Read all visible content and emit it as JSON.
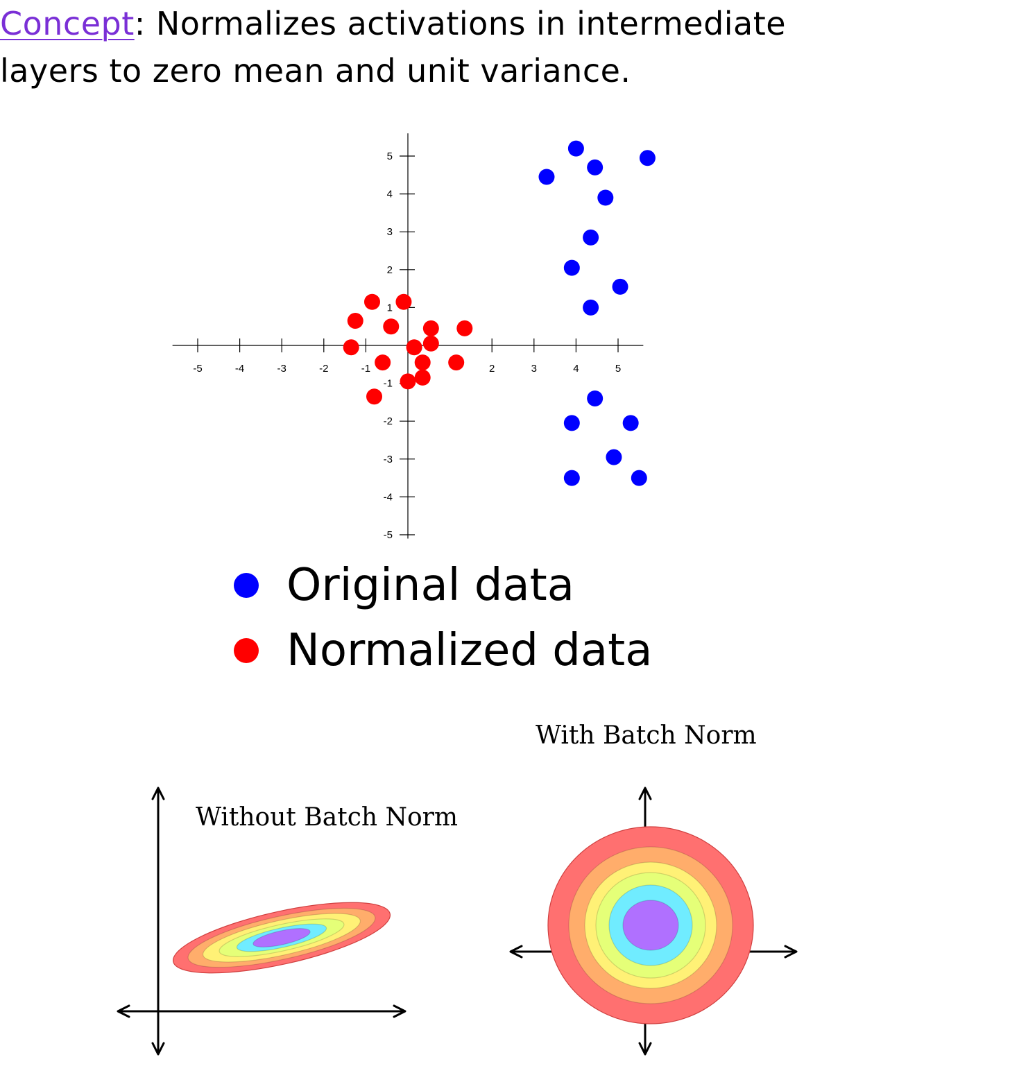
{
  "intro": {
    "concept_label": "Concept",
    "text_line1": ": Normalizes activations in intermediate",
    "text_line2": "layers to zero mean and unit variance."
  },
  "legend": {
    "original": {
      "label": "Original data",
      "color": "#0000ff"
    },
    "normalized": {
      "label": "Normalized data",
      "color": "#ff0000"
    }
  },
  "chart_data": [
    {
      "type": "scatter",
      "title": "",
      "xlabel": "",
      "ylabel": "",
      "xlim": [
        -5.6,
        5.6
      ],
      "ylim": [
        -5.1,
        5.6
      ],
      "xticks": [
        -5,
        -4,
        -3,
        -2,
        -1,
        2,
        3,
        4,
        5
      ],
      "yticks": [
        5,
        4,
        3,
        2,
        1,
        -1,
        -2,
        -3,
        -4,
        -5
      ],
      "grid": false,
      "series": [
        {
          "name": "Original data",
          "color": "#0000ff",
          "points": [
            [
              4.0,
              5.2
            ],
            [
              4.45,
              4.7
            ],
            [
              5.7,
              4.95
            ],
            [
              3.3,
              4.45
            ],
            [
              4.7,
              3.9
            ],
            [
              4.35,
              2.85
            ],
            [
              3.9,
              2.05
            ],
            [
              5.05,
              1.55
            ],
            [
              4.35,
              1.0
            ],
            [
              4.45,
              -1.4
            ],
            [
              3.9,
              -2.05
            ],
            [
              5.3,
              -2.05
            ],
            [
              4.9,
              -2.95
            ],
            [
              3.9,
              -3.5
            ],
            [
              5.5,
              -3.5
            ]
          ]
        },
        {
          "name": "Normalized data",
          "color": "#ff0000",
          "points": [
            [
              -0.85,
              1.15
            ],
            [
              -0.1,
              1.15
            ],
            [
              -1.25,
              0.65
            ],
            [
              -0.4,
              0.5
            ],
            [
              0.55,
              0.45
            ],
            [
              1.35,
              0.45
            ],
            [
              -1.35,
              -0.05
            ],
            [
              0.15,
              -0.05
            ],
            [
              0.55,
              0.05
            ],
            [
              -0.6,
              -0.45
            ],
            [
              0.35,
              -0.45
            ],
            [
              1.15,
              -0.45
            ],
            [
              0.35,
              -0.85
            ],
            [
              0.0,
              -0.95
            ],
            [
              -0.8,
              -1.35
            ]
          ]
        }
      ]
    },
    {
      "type": "contour",
      "title": "Without Batch Norm",
      "description_shape": "elongated tilted ellipse",
      "colors": [
        "#ff7070",
        "#ffad6b",
        "#fff176",
        "#e5ff78",
        "#70ecff",
        "#b070ff"
      ]
    },
    {
      "type": "contour",
      "title": "With Batch Norm",
      "description_shape": "concentric circles",
      "colors": [
        "#ff7070",
        "#ffad6b",
        "#fff176",
        "#e5ff78",
        "#70ecff",
        "#b070ff"
      ]
    }
  ]
}
